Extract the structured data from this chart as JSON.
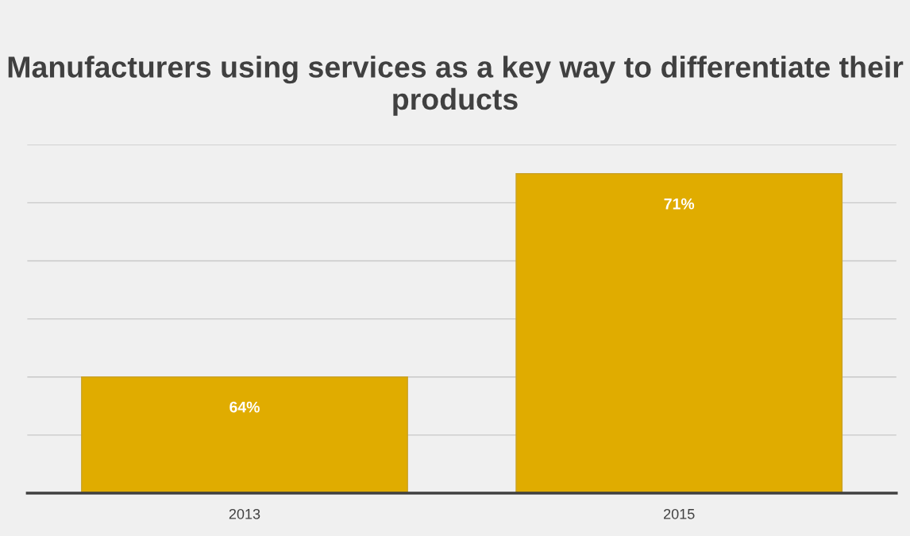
{
  "chart_data": {
    "type": "bar",
    "title": "Manufacturers using services as a key way to differentiate their products",
    "categories": [
      "2013",
      "2015"
    ],
    "values": [
      64,
      71
    ],
    "value_labels": [
      "64%",
      "71%"
    ],
    "color": "#e0ac00",
    "ylim": [
      60,
      72
    ],
    "yticks": [
      {
        "value": 60,
        "label": null
      },
      {
        "value": 62,
        "label": null
      },
      {
        "value": 64,
        "label": null
      },
      {
        "value": 66,
        "label": null
      },
      {
        "value": 68,
        "label": null
      },
      {
        "value": 70,
        "label": null
      },
      {
        "value": 72,
        "label": null
      }
    ],
    "tick_labels": "x",
    "grid": "y"
  }
}
